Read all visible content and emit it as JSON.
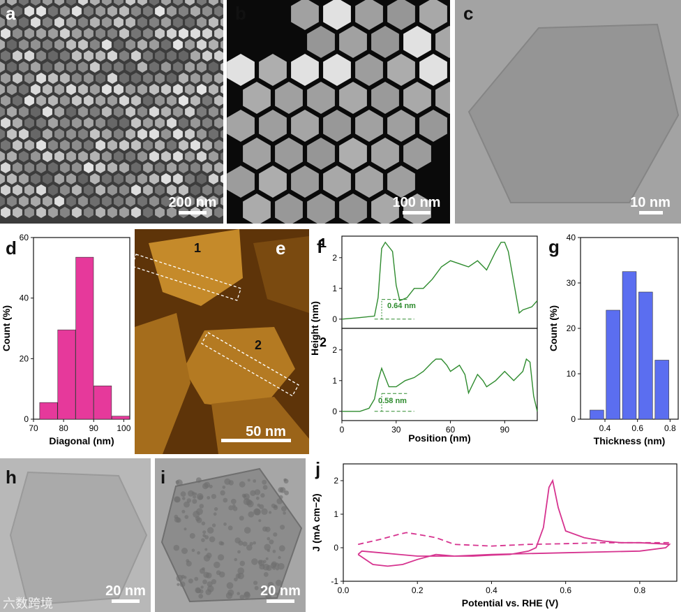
{
  "panels": {
    "a": {
      "letter": "a",
      "scale": "200 nm"
    },
    "b": {
      "letter": "b",
      "scale": "100 nm"
    },
    "c": {
      "letter": "c",
      "scale": "10 nm"
    },
    "d": {
      "letter": "d"
    },
    "e": {
      "letter": "e",
      "scale": "50 nm",
      "marker1": "1",
      "marker2": "2"
    },
    "f": {
      "letter": "f",
      "trace1": "1",
      "trace2": "2",
      "annot1": "0.64 nm",
      "annot2": "0.58 nm"
    },
    "g": {
      "letter": "g"
    },
    "h": {
      "letter": "h",
      "scale": "20 nm"
    },
    "i": {
      "letter": "i",
      "scale": "20 nm"
    },
    "j": {
      "letter": "j"
    }
  },
  "watermark": "六数跨境",
  "colors": {
    "pink": "#e6399b",
    "blue": "#5b6ef0",
    "green": "#2e8b2e",
    "magenta": "#d6338f",
    "afm": "#b87a1e"
  },
  "chart_data": [
    {
      "id": "d",
      "type": "bar",
      "xlabel": "Diagonal (nm)",
      "ylabel": "Count (%)",
      "x": [
        75,
        81,
        87,
        93,
        99
      ],
      "values": [
        5.5,
        29.5,
        53.5,
        11,
        1
      ],
      "xlim": [
        70,
        102
      ],
      "ylim": [
        0,
        60
      ],
      "xticks": [
        "70",
        "80",
        "90",
        "100"
      ],
      "yticks": [
        "0",
        "20",
        "40",
        "60"
      ]
    },
    {
      "id": "f",
      "type": "line",
      "xlabel": "Position (nm)",
      "ylabel": "Height (nm)",
      "xlim": [
        0,
        108
      ],
      "xticks": [
        "0",
        "30",
        "60",
        "90"
      ],
      "ylim": [
        -0.3,
        2.7
      ],
      "yticks": [
        "0",
        "1",
        "2"
      ],
      "series": [
        {
          "name": "1",
          "x": [
            0,
            10,
            18,
            20,
            22,
            24,
            28,
            30,
            32,
            36,
            40,
            45,
            50,
            55,
            60,
            65,
            70,
            75,
            80,
            85,
            88,
            90,
            92,
            95,
            98,
            100,
            105,
            108
          ],
          "y": [
            0.0,
            0.05,
            0.1,
            0.7,
            2.3,
            2.5,
            2.2,
            1.1,
            0.6,
            0.7,
            1.0,
            1.0,
            1.3,
            1.7,
            1.9,
            1.8,
            1.7,
            1.9,
            1.6,
            2.2,
            2.5,
            2.5,
            2.2,
            1.2,
            0.2,
            0.3,
            0.4,
            0.6
          ]
        },
        {
          "name": "2",
          "x": [
            0,
            10,
            15,
            18,
            20,
            22,
            24,
            26,
            30,
            35,
            40,
            45,
            50,
            52,
            55,
            58,
            60,
            65,
            68,
            70,
            75,
            78,
            80,
            85,
            90,
            95,
            100,
            102,
            104,
            106,
            108
          ],
          "y": [
            0.0,
            0.0,
            0.1,
            0.4,
            1.0,
            1.4,
            1.1,
            0.8,
            0.8,
            1.0,
            1.1,
            1.3,
            1.6,
            1.7,
            1.7,
            1.5,
            1.3,
            1.5,
            1.2,
            0.6,
            1.2,
            1.0,
            0.8,
            1.0,
            1.3,
            1.0,
            1.3,
            1.7,
            1.6,
            0.5,
            0.0
          ]
        }
      ]
    },
    {
      "id": "g",
      "type": "bar",
      "xlabel": "Thickness (nm)",
      "ylabel": "Count (%)",
      "x": [
        0.35,
        0.45,
        0.55,
        0.65,
        0.75
      ],
      "values": [
        2,
        24,
        32.5,
        28,
        13
      ],
      "xlim": [
        0.25,
        0.85
      ],
      "ylim": [
        0,
        40
      ],
      "xticks": [
        "0.4",
        "0.6",
        "0.8"
      ],
      "yticks": [
        "0",
        "10",
        "20",
        "30",
        "40"
      ]
    },
    {
      "id": "j",
      "type": "line",
      "xlabel": "Potential vs. RHE (V)",
      "ylabel": "J (mA cm−2)",
      "xlim": [
        0,
        0.9
      ],
      "ylim": [
        -1,
        2.5
      ],
      "xticks": [
        "0.0",
        "0.2",
        "0.4",
        "0.6",
        "0.8"
      ],
      "yticks": [
        "-1",
        "0",
        "1",
        "2"
      ],
      "series": [
        {
          "name": "",
          "x": [
            0.04,
            0.08,
            0.12,
            0.16,
            0.2,
            0.25,
            0.3,
            0.35,
            0.4,
            0.45,
            0.5,
            0.52,
            0.54,
            0.555,
            0.565,
            0.58,
            0.6,
            0.65,
            0.7,
            0.75,
            0.8,
            0.85,
            0.88,
            0.87,
            0.8,
            0.6,
            0.4,
            0.3,
            0.2,
            0.15,
            0.1,
            0.05,
            0.04
          ],
          "y": [
            -0.2,
            -0.5,
            -0.55,
            -0.5,
            -0.35,
            -0.2,
            -0.25,
            -0.25,
            -0.22,
            -0.2,
            -0.1,
            0.0,
            0.6,
            1.8,
            2.0,
            1.2,
            0.5,
            0.3,
            0.2,
            0.15,
            0.15,
            0.12,
            0.1,
            0.0,
            -0.1,
            -0.15,
            -0.2,
            -0.25,
            -0.25,
            -0.2,
            -0.15,
            -0.1,
            -0.2
          ]
        },
        {
          "name": "",
          "x": [
            0.04,
            0.1,
            0.15,
            0.17,
            0.2,
            0.25,
            0.3,
            0.4,
            0.5,
            0.6,
            0.7,
            0.8,
            0.88
          ],
          "y": [
            0.1,
            0.25,
            0.4,
            0.45,
            0.4,
            0.3,
            0.1,
            0.05,
            0.1,
            0.12,
            0.15,
            0.15,
            0.15
          ],
          "dash": true
        }
      ]
    }
  ]
}
